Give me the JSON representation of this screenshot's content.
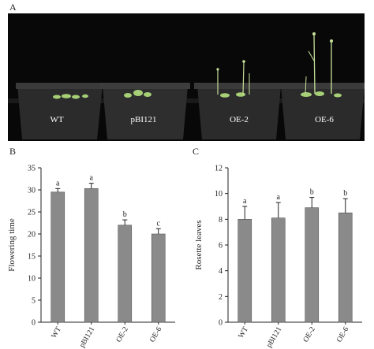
{
  "figure": {
    "panels": [
      {
        "letter": "A"
      },
      {
        "letter": "B"
      },
      {
        "letter": "C"
      }
    ],
    "photo": {
      "pot_labels": [
        "WT",
        "pBI121",
        "OE-2",
        "OE-6"
      ],
      "colors": {
        "background": "#080808",
        "pot": "#2b2b2b",
        "pot_rim": "#3a3a3a",
        "plant": "#a6cf76",
        "stem": "#c7e29a"
      }
    }
  },
  "chart_data": [
    {
      "type": "bar",
      "categories": [
        "WT",
        "pBI121",
        "OE-2",
        "OE-6"
      ],
      "values": [
        29.5,
        30.3,
        22.0,
        20.0
      ],
      "errors": [
        0.8,
        1.2,
        1.2,
        1.2
      ],
      "significance": [
        "a",
        "a",
        "b",
        "c"
      ],
      "ylabel": "Flowering time",
      "xlabel": "",
      "ylim": [
        0,
        35
      ],
      "yticks": [
        0,
        5,
        10,
        15,
        20,
        25,
        30,
        35
      ],
      "bar_color": "#8a8a8a",
      "grid": false
    },
    {
      "type": "bar",
      "categories": [
        "WT",
        "pBI121",
        "OE-2",
        "OE-6"
      ],
      "values": [
        8.0,
        8.1,
        8.9,
        8.5
      ],
      "errors": [
        1.0,
        1.2,
        0.8,
        1.1
      ],
      "significance": [
        "a",
        "a",
        "b",
        "b"
      ],
      "ylabel": "Rosette leaves",
      "xlabel": "",
      "ylim": [
        0,
        12
      ],
      "yticks": [
        0,
        2,
        4,
        6,
        8,
        10,
        12
      ],
      "bar_color": "#8a8a8a",
      "grid": false
    }
  ]
}
